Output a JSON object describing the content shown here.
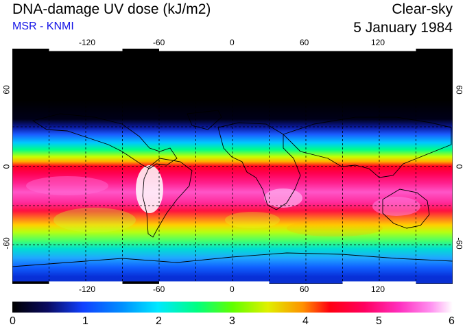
{
  "header": {
    "title": "DNA-damage UV dose (kJ/m2)",
    "source": "MSR - KNMI",
    "sky_condition": "Clear-sky",
    "date": "5 January 1984"
  },
  "map": {
    "longitude_labels": [
      "-120",
      "-60",
      "0",
      "60",
      "120"
    ],
    "latitude_labels_left": [
      "60",
      "0",
      "-60"
    ],
    "latitude_labels_right": [
      "60",
      "0",
      "-60"
    ],
    "longitude_range": [
      -180,
      180
    ],
    "latitude_range": [
      -90,
      90
    ],
    "grid": "dashed, every 30 degrees"
  },
  "colorbar": {
    "tick_labels": [
      "0",
      "1",
      "2",
      "3",
      "4",
      "5",
      "6"
    ],
    "range": [
      0,
      6
    ],
    "unit": "kJ/m2"
  }
}
